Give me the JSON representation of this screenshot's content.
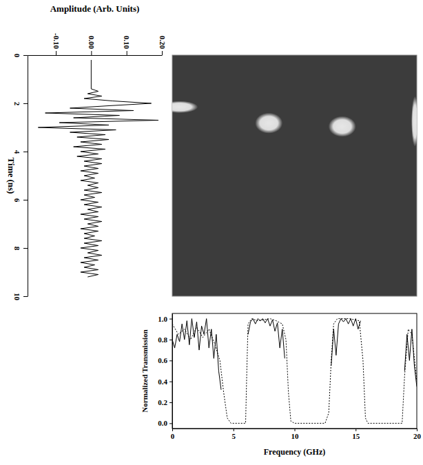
{
  "chart_data": [
    {
      "type": "line",
      "xlabel": "Time (ns)",
      "ylabel": "Amplitude (Arb. Units)",
      "color": "#000000",
      "x": [
        0.2,
        1.4,
        1.5,
        1.6,
        1.7,
        1.8,
        1.9,
        2.0,
        2.1,
        2.2,
        2.3,
        2.4,
        2.5,
        2.6,
        2.7,
        2.8,
        2.9,
        3.0,
        3.1,
        3.2,
        3.3,
        3.4,
        3.5,
        3.6,
        3.7,
        3.8,
        3.9,
        4.0,
        4.1,
        4.2,
        4.3,
        4.4,
        4.5,
        4.6,
        4.7,
        4.8,
        4.9,
        5.0,
        5.1,
        5.2,
        5.3,
        5.4,
        5.5,
        5.6,
        5.7,
        5.8,
        5.9,
        6.0,
        6.1,
        6.2,
        6.3,
        6.4,
        6.5,
        6.6,
        6.7,
        6.8,
        6.9,
        7.0,
        7.1,
        7.2,
        7.3,
        7.4,
        7.5,
        7.6,
        7.7,
        7.8,
        7.9,
        8.0,
        8.1,
        8.2,
        8.3,
        8.4,
        8.5,
        8.6,
        8.7,
        8.8,
        8.9,
        9.0,
        9.1,
        9.2
      ],
      "values": [
        0.0,
        0.0,
        0.02,
        -0.01,
        0.03,
        -0.02,
        0.06,
        0.17,
        0.05,
        -0.06,
        0.12,
        -0.13,
        0.08,
        -0.05,
        0.19,
        -0.09,
        0.05,
        -0.15,
        0.07,
        -0.06,
        0.04,
        -0.04,
        0.05,
        -0.03,
        0.03,
        -0.05,
        0.04,
        -0.03,
        0.02,
        -0.04,
        0.03,
        -0.02,
        0.03,
        -0.02,
        0.02,
        -0.03,
        0.02,
        -0.02,
        0.01,
        -0.03,
        0.02,
        -0.01,
        0.02,
        -0.02,
        0.03,
        -0.02,
        0.01,
        -0.03,
        0.02,
        -0.02,
        0.03,
        -0.01,
        0.02,
        -0.03,
        0.02,
        -0.02,
        0.03,
        -0.01,
        0.02,
        -0.03,
        0.02,
        -0.02,
        0.01,
        -0.02,
        0.03,
        -0.02,
        0.02,
        -0.03,
        0.02,
        -0.01,
        0.03,
        -0.02,
        0.02,
        -0.03,
        0.01,
        -0.02,
        0.02,
        -0.03,
        0.02,
        -0.01
      ],
      "xlim": [
        0,
        10
      ],
      "xticks": [
        0,
        2,
        4,
        6,
        8,
        10
      ],
      "ylim": [
        -0.18,
        0.2
      ],
      "yticks": [
        {
          "value": -0.1,
          "label": "-0.10"
        },
        {
          "value": 0,
          "label": "0.00"
        },
        {
          "value": 0.1,
          "label": "0.10"
        },
        {
          "value": 0.2,
          "label": "0.20"
        }
      ]
    },
    {
      "type": "heatmap",
      "xlim": [
        0,
        20
      ],
      "ylim": [
        0,
        10
      ],
      "tick_labels": false,
      "color": "#e6e6e6",
      "spots": [
        {
          "x": 0.6,
          "y": 2.15,
          "x_width": 3.0,
          "y_width": 0.5
        },
        {
          "x": 7.9,
          "y": 2.82,
          "x_width": 2.25,
          "y_width": 0.86
        },
        {
          "x": 13.9,
          "y": 2.96,
          "x_width": 2.25,
          "y_width": 0.86
        },
        {
          "x": 19.85,
          "y": 2.75,
          "x_width": 0.6,
          "y_width": 2.1
        }
      ]
    },
    {
      "type": "line",
      "xlabel": "Frequency (GHz)",
      "ylabel": "Normalized Transmission",
      "xlim": [
        0,
        20
      ],
      "xticks": [
        0,
        5,
        10,
        15,
        20
      ],
      "ylim": [
        -0.05,
        1.05
      ],
      "yticks": [
        {
          "value": 0,
          "label": "0.0"
        },
        0.2,
        0.4,
        0.6,
        0.8,
        {
          "value": 1,
          "label": "1.0"
        }
      ],
      "series": [
        {
          "color": "#000000",
          "line_style": "solid",
          "x": [
            0,
            0.2,
            0.4,
            0.6,
            0.8,
            1.0,
            1.2,
            1.4,
            1.6,
            1.8,
            2.0,
            2.2,
            2.4,
            2.6,
            2.8,
            3.0,
            3.2,
            3.4,
            3.6,
            3.8,
            4.0,
            5.0,
            6.2,
            6.4,
            6.6,
            6.8,
            7.0,
            7.2,
            7.4,
            7.6,
            7.8,
            8.0,
            8.2,
            8.4,
            8.6,
            8.8,
            9.0,
            9.2,
            11.0,
            13.0,
            13.2,
            13.4,
            13.6,
            13.8,
            14.0,
            14.2,
            14.4,
            14.6,
            14.8,
            15.0,
            15.2,
            15.4,
            17.0,
            19.0,
            19.2,
            19.4,
            19.6,
            19.8,
            20.0
          ],
          "values": [
            0.8,
            0.72,
            0.85,
            0.78,
            0.95,
            0.8,
            0.98,
            0.75,
            1.0,
            0.82,
            0.97,
            0.7,
            0.93,
            0.85,
            1.0,
            0.72,
            0.9,
            0.62,
            0.85,
            0.5,
            0.32,
            null,
            0.85,
            0.97,
            1.0,
            0.95,
            1.0,
            0.98,
            1.0,
            0.96,
            1.0,
            0.93,
            0.99,
            0.88,
            0.96,
            0.72,
            0.9,
            0.62,
            null,
            0.55,
            0.9,
            0.65,
            0.95,
            1.0,
            0.97,
            1.0,
            0.95,
            1.0,
            0.93,
            1.0,
            0.9,
            0.98,
            null,
            0.5,
            0.85,
            0.6,
            0.9,
            0.55,
            0.35
          ]
        },
        {
          "color": "#000000",
          "line_style": "dotted",
          "x": [
            0,
            0.5,
            1.0,
            1.5,
            2.0,
            2.5,
            3.0,
            3.5,
            3.9,
            4.2,
            4.5,
            4.8,
            5.5,
            6.0,
            6.1,
            6.2,
            6.5,
            7.0,
            8.0,
            8.5,
            9.0,
            9.3,
            9.5,
            9.7,
            10.0,
            12.5,
            12.8,
            13.0,
            13.2,
            13.5,
            14.5,
            15.3,
            15.6,
            15.8,
            16.0,
            18.8,
            19.0,
            19.3,
            19.6,
            20.0
          ],
          "values": [
            0.95,
            0.85,
            0.9,
            0.8,
            0.92,
            0.82,
            0.9,
            0.75,
            0.6,
            0.3,
            0.05,
            0.0,
            0.0,
            0.0,
            0.5,
            0.95,
            1.0,
            0.98,
            1.0,
            0.98,
            0.95,
            0.8,
            0.3,
            0.02,
            0.0,
            0.0,
            0.1,
            0.6,
            0.95,
            1.0,
            1.0,
            0.98,
            0.6,
            0.05,
            0.0,
            0.0,
            0.45,
            0.9,
            0.85,
            0.4
          ]
        }
      ]
    }
  ]
}
